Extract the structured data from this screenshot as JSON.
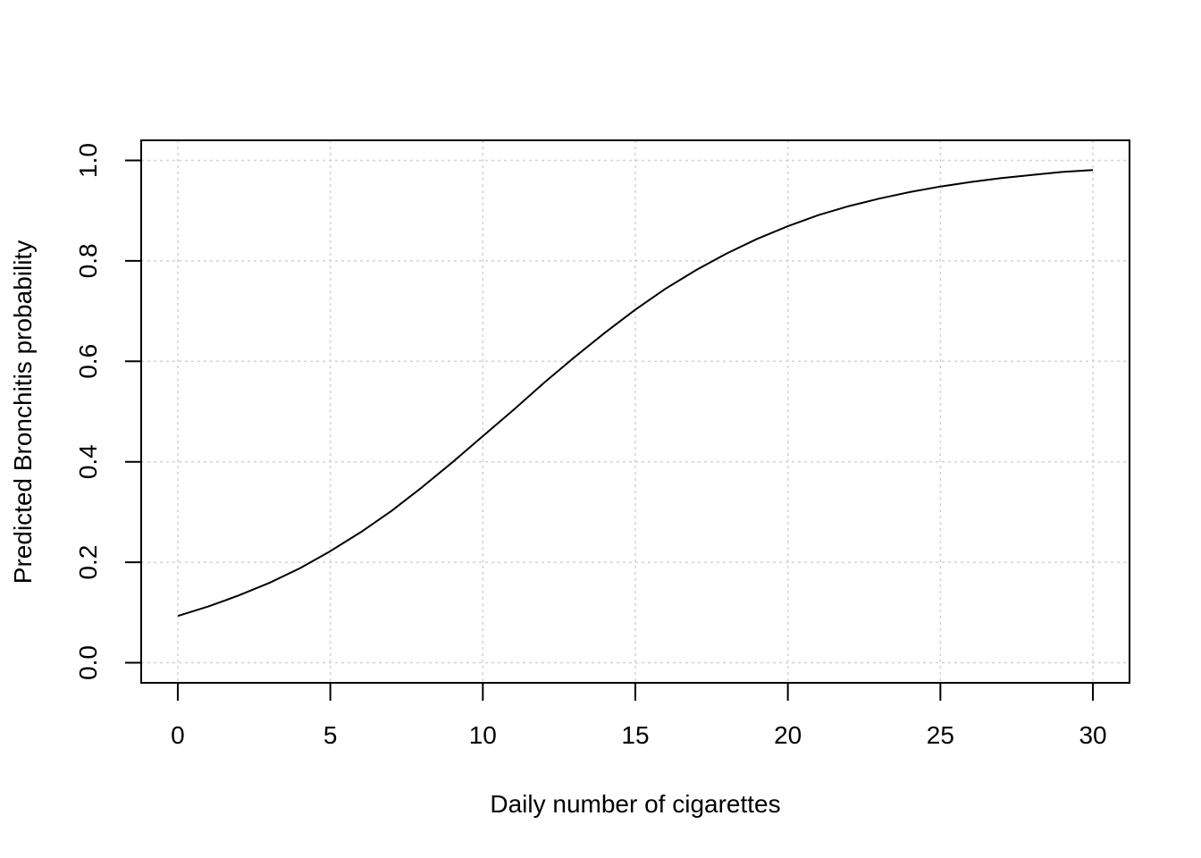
{
  "chart_data": {
    "type": "line",
    "title": "",
    "xlabel": "Daily number of cigarettes",
    "ylabel": "Predicted Bronchitis probability",
    "xlim": [
      -1.2,
      31.2
    ],
    "ylim": [
      -0.04,
      1.04
    ],
    "x_ticks": [
      "0",
      "5",
      "10",
      "15",
      "20",
      "25",
      "30"
    ],
    "y_ticks": [
      "0.0",
      "0.2",
      "0.4",
      "0.6",
      "0.8",
      "1.0"
    ],
    "grid": true,
    "series": [
      {
        "x": [
          0,
          1,
          2,
          3,
          4,
          5,
          6,
          7,
          8,
          9,
          10,
          11,
          12,
          13,
          14,
          15,
          16,
          17,
          18,
          19,
          20,
          21,
          22,
          23,
          24,
          25,
          26,
          27,
          28,
          29,
          30
        ],
        "values": [
          0.093,
          0.112,
          0.134,
          0.159,
          0.188,
          0.222,
          0.26,
          0.302,
          0.349,
          0.399,
          0.451,
          0.503,
          0.557,
          0.608,
          0.657,
          0.703,
          0.745,
          0.782,
          0.815,
          0.844,
          0.869,
          0.891,
          0.909,
          0.924,
          0.937,
          0.948,
          0.957,
          0.965,
          0.971,
          0.977,
          0.981
        ]
      }
    ]
  }
}
